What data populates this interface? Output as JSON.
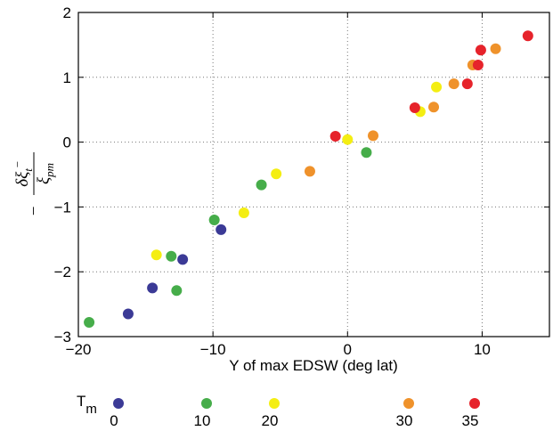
{
  "chart_data": {
    "type": "scatter",
    "xlabel": "Y of max EDSW (deg lat)",
    "ylabel": {
      "sign": "−",
      "numerator": "δξ",
      "numerator_sub": "t",
      "numerator_sup": "−",
      "denominator": "ξ",
      "denominator_sub": "pm"
    },
    "xlim": [
      -20,
      15
    ],
    "ylim": [
      -3,
      2
    ],
    "xticks": [
      {
        "value": -20,
        "label": "−20"
      },
      {
        "value": -10,
        "label": "−10"
      },
      0,
      10
    ],
    "yticks": [
      {
        "value": -3,
        "label": "−3"
      },
      {
        "value": -2,
        "label": "−2"
      },
      {
        "value": -1,
        "label": "−1"
      },
      0,
      1,
      2
    ],
    "grid": true,
    "legend_title": "T",
    "legend_title_sub": "m",
    "series": [
      {
        "name": "0",
        "color": "#3b3a96",
        "x": [
          -16.3,
          -14.5,
          -12.25,
          -9.4
        ],
        "values": [
          -2.65,
          -2.25,
          -1.81,
          -1.35
        ]
      },
      {
        "name": "10",
        "color": "#46ad4a",
        "x": [
          -19.2,
          -13.1,
          -12.7,
          -9.9,
          -6.4,
          1.4
        ],
        "values": [
          -2.78,
          -1.76,
          -2.29,
          -1.2,
          -0.66,
          -0.16
        ]
      },
      {
        "name": "20",
        "color": "#f4ee12",
        "x": [
          -14.2,
          -7.7,
          -5.3,
          0,
          5.4,
          6.6
        ],
        "values": [
          -1.74,
          -1.09,
          -0.49,
          0.04,
          0.47,
          0.85
        ]
      },
      {
        "name": "30",
        "color": "#ef922b",
        "x": [
          -2.8,
          1.9,
          6.4,
          7.9,
          9.3,
          11
        ],
        "values": [
          -0.45,
          0.1,
          0.54,
          0.9,
          1.19,
          1.44
        ]
      },
      {
        "name": "35",
        "color": "#e6232b",
        "x": [
          -0.9,
          5.0,
          8.9,
          9.7,
          9.9,
          13.4
        ],
        "values": [
          0.09,
          0.53,
          0.9,
          1.19,
          1.42,
          1.64
        ]
      }
    ]
  }
}
